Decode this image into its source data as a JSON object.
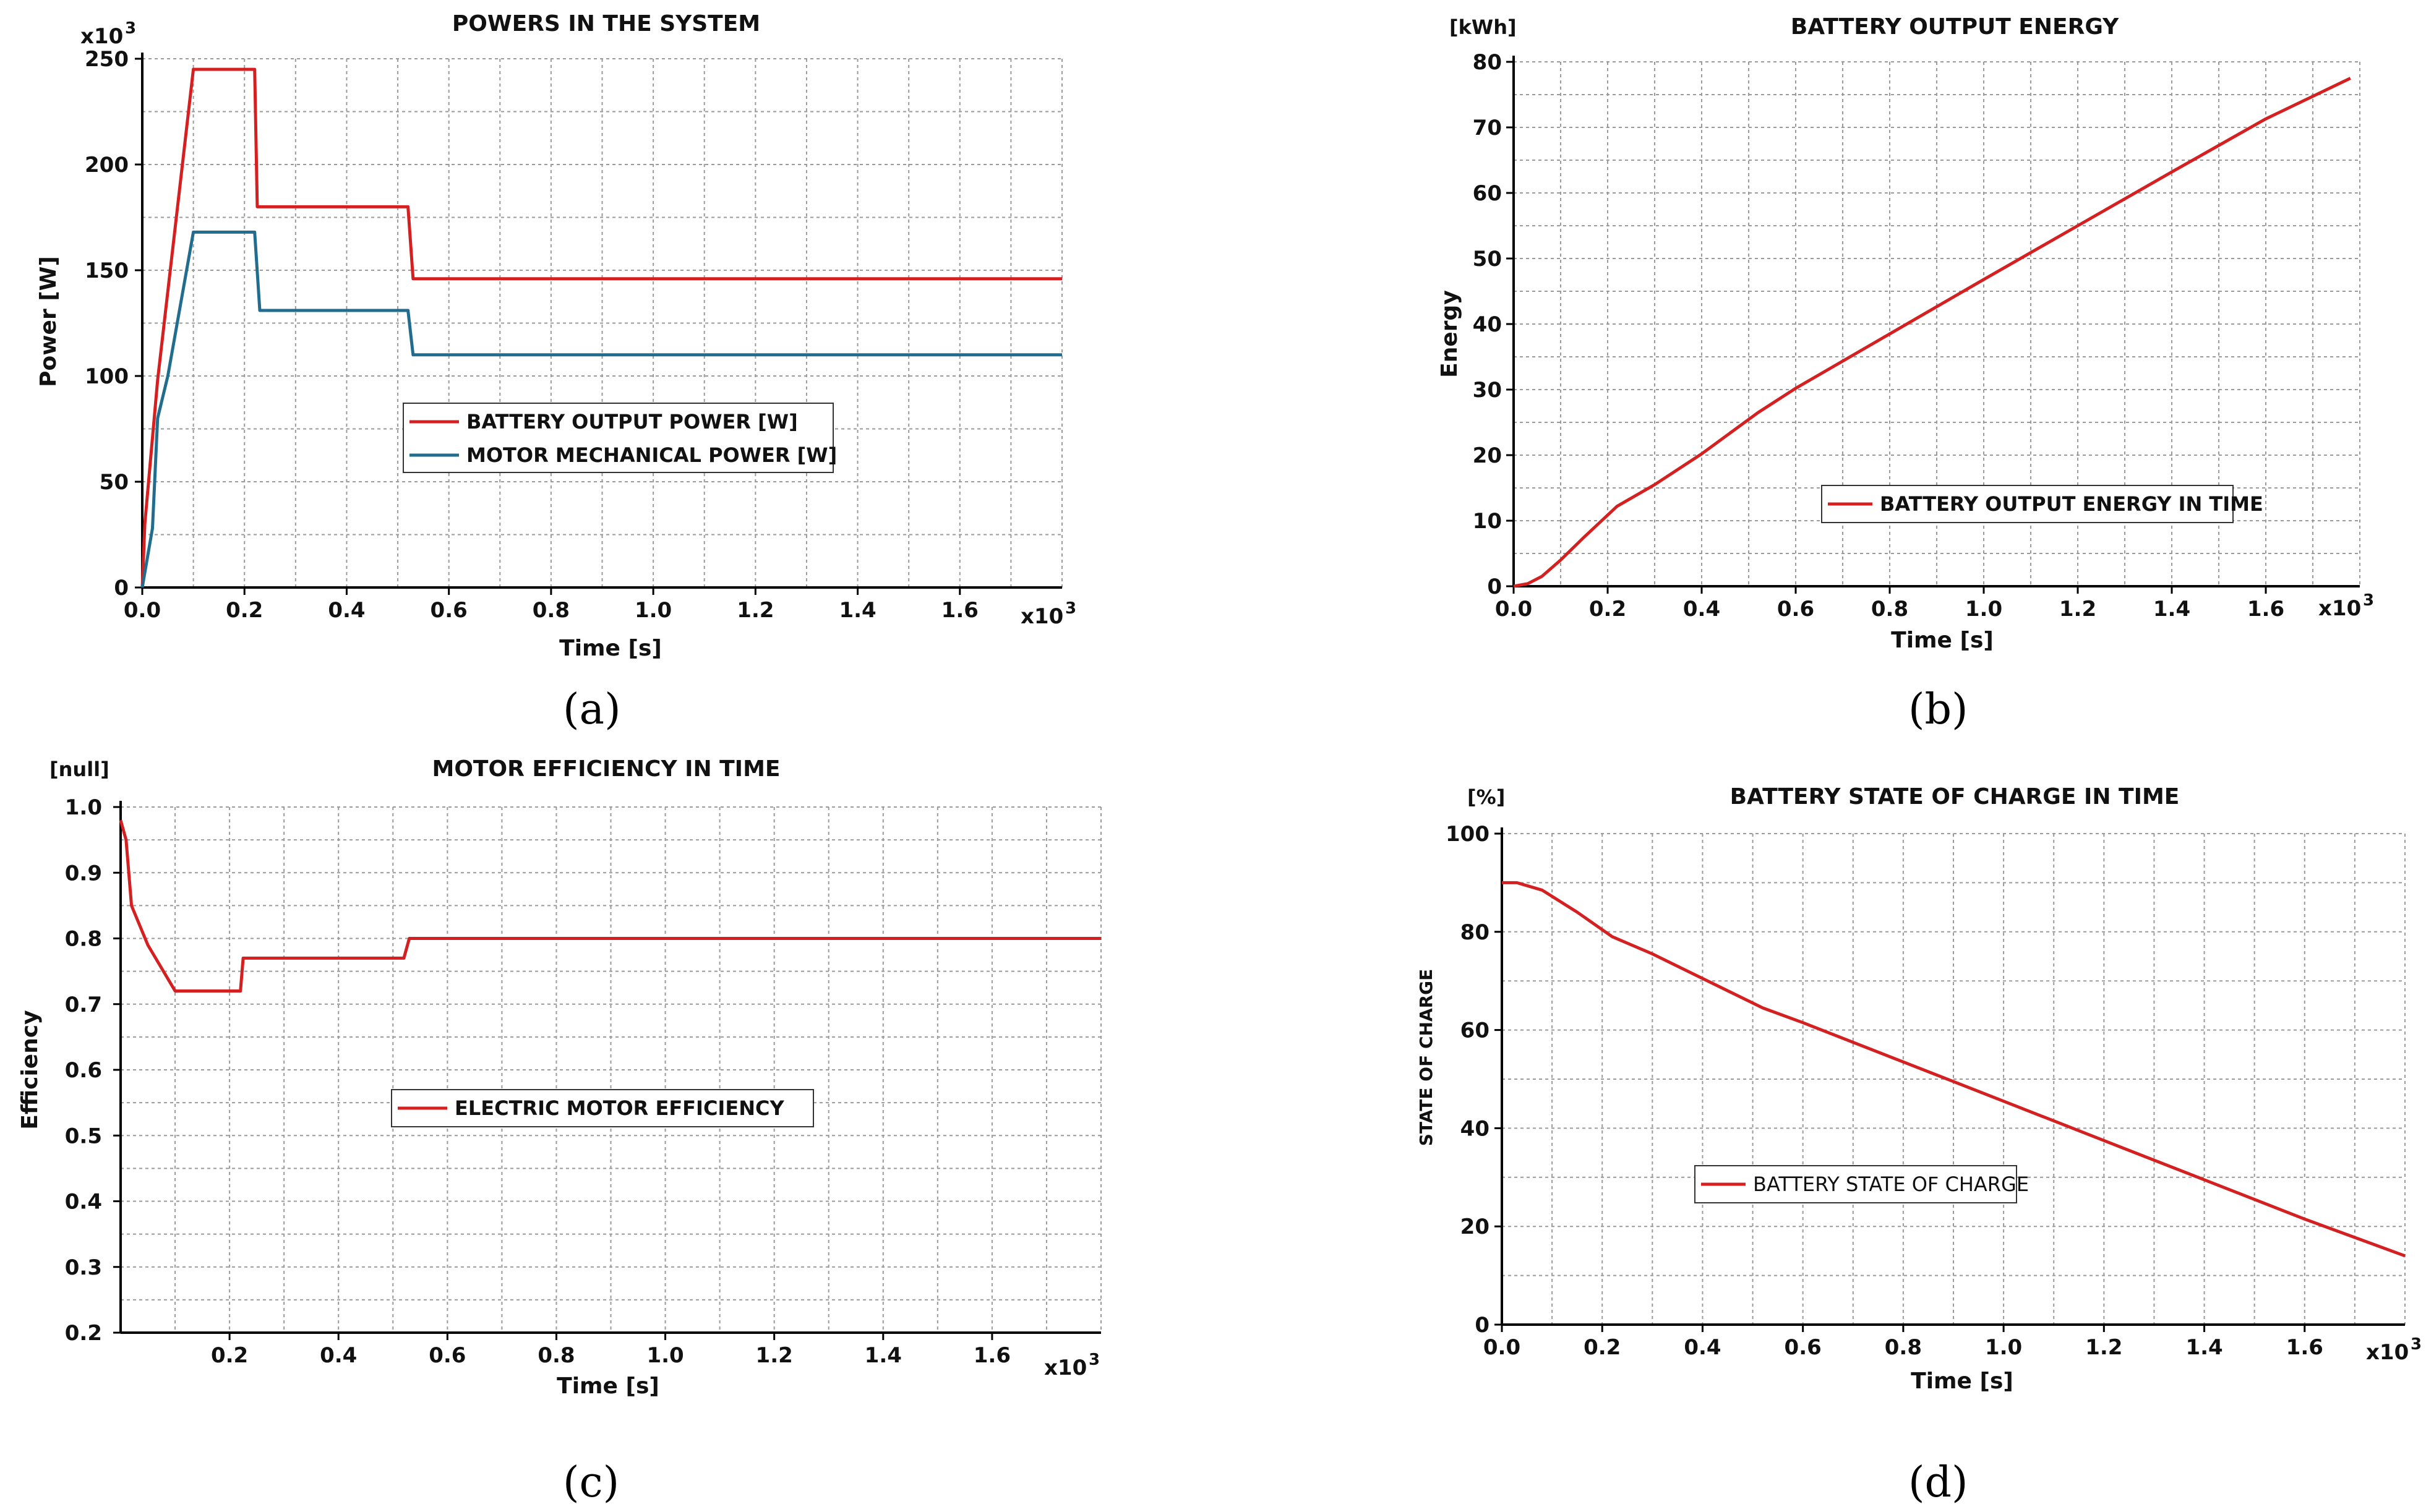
{
  "colors": {
    "red": "#d42020",
    "blue": "#226d8e"
  },
  "chart_data": [
    {
      "type": "line",
      "panel_label": "(a)",
      "title": "POWERS IN THE SYSTEM",
      "xlabel": "Time [s]",
      "ylabel": "Power [W]",
      "y_multiplier": "x10",
      "y_multiplier_exp": "3",
      "x_multiplier": "x10",
      "x_multiplier_exp": "3",
      "xlim": [
        0,
        1.8
      ],
      "ylim": [
        0,
        250
      ],
      "xticks": [
        0.0,
        0.2,
        0.4,
        0.6,
        0.8,
        1.0,
        1.2,
        1.4,
        1.6
      ],
      "xtick_labels": [
        "0.0",
        "0.2",
        "0.4",
        "0.6",
        "0.8",
        "1.0",
        "1.2",
        "1.4",
        "1.6"
      ],
      "yticks": [
        0,
        50,
        100,
        150,
        200,
        250
      ],
      "ytick_labels": [
        "0",
        "50",
        "100",
        "150",
        "200",
        "250"
      ],
      "legend_position": "center",
      "series": [
        {
          "name": "BATTERY OUTPUT POWER [W]",
          "color": "#d42020",
          "points": [
            [
              0.0,
              0
            ],
            [
              0.005,
              30
            ],
            [
              0.03,
              98
            ],
            [
              0.1,
              245
            ],
            [
              0.22,
              245
            ],
            [
              0.225,
              180
            ],
            [
              0.52,
              180
            ],
            [
              0.53,
              146
            ],
            [
              1.8,
              146
            ]
          ]
        },
        {
          "name": "MOTOR MECHANICAL POWER [W]",
          "color": "#226d8e",
          "points": [
            [
              0.0,
              0
            ],
            [
              0.02,
              28
            ],
            [
              0.03,
              80
            ],
            [
              0.05,
              100
            ],
            [
              0.1,
              168
            ],
            [
              0.22,
              168
            ],
            [
              0.23,
              131
            ],
            [
              0.52,
              131
            ],
            [
              0.53,
              110
            ],
            [
              1.8,
              110
            ]
          ]
        }
      ]
    },
    {
      "type": "line",
      "panel_label": "(b)",
      "title": "BATTERY OUTPUT ENERGY",
      "xlabel": "Time [s]",
      "ylabel": "Energy",
      "y_unit": "[kWh]",
      "x_multiplier": "x10",
      "x_multiplier_exp": "3",
      "xlim": [
        0,
        1.8
      ],
      "ylim": [
        0,
        80
      ],
      "xticks": [
        0.0,
        0.2,
        0.4,
        0.6,
        0.8,
        1.0,
        1.2,
        1.4,
        1.6
      ],
      "xtick_labels": [
        "0.0",
        "0.2",
        "0.4",
        "0.6",
        "0.8",
        "1.0",
        "1.2",
        "1.4",
        "1.6"
      ],
      "yticks": [
        0,
        10,
        20,
        30,
        40,
        50,
        60,
        70,
        80
      ],
      "ytick_labels": [
        "0",
        "10",
        "20",
        "30",
        "40",
        "50",
        "60",
        "70",
        "80"
      ],
      "legend_position": "lower-right",
      "series": [
        {
          "name": "BATTERY OUTPUT ENERGY IN TIME",
          "color": "#d42020",
          "points": [
            [
              0.0,
              0
            ],
            [
              0.03,
              0.4
            ],
            [
              0.06,
              1.5
            ],
            [
              0.1,
              4
            ],
            [
              0.15,
              7.5
            ],
            [
              0.22,
              12.2
            ],
            [
              0.3,
              15.5
            ],
            [
              0.4,
              20.2
            ],
            [
              0.52,
              26.5
            ],
            [
              0.6,
              30.2
            ],
            [
              0.8,
              38.5
            ],
            [
              1.0,
              46.8
            ],
            [
              1.2,
              55
            ],
            [
              1.4,
              63.2
            ],
            [
              1.6,
              71.3
            ],
            [
              1.78,
              77.5
            ]
          ]
        }
      ]
    },
    {
      "type": "line",
      "panel_label": "(c)",
      "title": "MOTOR EFFICIENCY IN TIME",
      "xlabel": "Time [s]",
      "ylabel": "Efficiency",
      "y_unit": "[null]",
      "x_multiplier": "x10",
      "x_multiplier_exp": "3",
      "xlim": [
        0,
        1.8
      ],
      "ylim": [
        0.2,
        1.0
      ],
      "xticks": [
        0.2,
        0.4,
        0.6,
        0.8,
        1.0,
        1.2,
        1.4,
        1.6
      ],
      "xtick_labels": [
        "0.2",
        "0.4",
        "0.6",
        "0.8",
        "1.0",
        "1.2",
        "1.4",
        "1.6"
      ],
      "yticks": [
        0.2,
        0.3,
        0.4,
        0.5,
        0.6,
        0.7,
        0.8,
        0.9,
        1.0
      ],
      "ytick_labels": [
        "0.2",
        "0.3",
        "0.4",
        "0.5",
        "0.6",
        "0.7",
        "0.8",
        "0.9",
        "1.0"
      ],
      "legend_position": "center-left",
      "series": [
        {
          "name": "ELECTRIC MOTOR EFFICIENCY",
          "color": "#d42020",
          "points": [
            [
              0.0,
              0.98
            ],
            [
              0.01,
              0.95
            ],
            [
              0.02,
              0.85
            ],
            [
              0.05,
              0.79
            ],
            [
              0.1,
              0.72
            ],
            [
              0.22,
              0.72
            ],
            [
              0.225,
              0.77
            ],
            [
              0.52,
              0.77
            ],
            [
              0.53,
              0.8
            ],
            [
              1.8,
              0.8
            ]
          ]
        }
      ]
    },
    {
      "type": "line",
      "panel_label": "(d)",
      "title": "BATTERY STATE OF CHARGE IN TIME",
      "xlabel": "Time [s]",
      "ylabel": "STATE OF CHARGE",
      "y_unit": "[%]",
      "x_multiplier": "x10",
      "x_multiplier_exp": "3",
      "xlim": [
        0,
        1.8
      ],
      "ylim": [
        0,
        100
      ],
      "xticks": [
        0.0,
        0.2,
        0.4,
        0.6,
        0.8,
        1.0,
        1.2,
        1.4,
        1.6
      ],
      "xtick_labels": [
        "0.0",
        "0.2",
        "0.4",
        "0.6",
        "0.8",
        "1.0",
        "1.2",
        "1.4",
        "1.6"
      ],
      "yticks": [
        0,
        20,
        40,
        60,
        80,
        100
      ],
      "ytick_labels": [
        "0",
        "20",
        "40",
        "60",
        "80",
        "100"
      ],
      "legend_position": "lower-left",
      "series": [
        {
          "name": "BATTERY STATE OF CHARGE",
          "color": "#d42020",
          "points": [
            [
              0.0,
              90
            ],
            [
              0.03,
              90
            ],
            [
              0.08,
              88.5
            ],
            [
              0.15,
              84
            ],
            [
              0.22,
              79
            ],
            [
              0.3,
              75.5
            ],
            [
              0.4,
              70.5
            ],
            [
              0.52,
              64.5
            ],
            [
              0.6,
              61.5
            ],
            [
              0.8,
              53.5
            ],
            [
              1.0,
              45.5
            ],
            [
              1.2,
              37.5
            ],
            [
              1.4,
              29.5
            ],
            [
              1.6,
              21.5
            ],
            [
              1.8,
              14
            ]
          ]
        }
      ]
    }
  ]
}
